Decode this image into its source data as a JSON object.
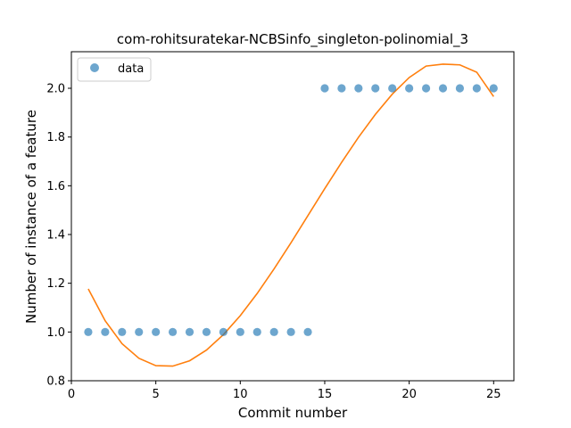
{
  "chart_data": {
    "type": "scatter",
    "title": "com-rohitsuratekar-NCBSinfo_singleton-polinomial_3",
    "xlabel": "Commit number",
    "ylabel": "Number of instance of a feature",
    "xlim": [
      0,
      26.2
    ],
    "ylim": [
      0.8,
      2.15
    ],
    "xticks": [
      0,
      5,
      10,
      15,
      20,
      25
    ],
    "yticks": [
      0.8,
      1.0,
      1.2,
      1.4,
      1.6,
      1.8,
      2.0
    ],
    "xtick_labels": [
      "0",
      "5",
      "10",
      "15",
      "20",
      "25"
    ],
    "ytick_labels": [
      "0.8",
      "1.0",
      "1.2",
      "1.4",
      "1.6",
      "1.8",
      "2.0"
    ],
    "grid": false,
    "legend_position": "upper-left",
    "series": [
      {
        "name": "data",
        "kind": "scatter",
        "color": "#1f77b4",
        "x": [
          1,
          2,
          3,
          4,
          5,
          6,
          7,
          8,
          9,
          10,
          11,
          12,
          13,
          14,
          15,
          16,
          17,
          18,
          19,
          20,
          21,
          22,
          23,
          24,
          25
        ],
        "y": [
          1,
          1,
          1,
          1,
          1,
          1,
          1,
          1,
          1,
          1,
          1,
          1,
          1,
          1,
          2,
          2,
          2,
          2,
          2,
          2,
          2,
          2,
          2,
          2,
          2
        ]
      },
      {
        "kind": "line",
        "color": "#ff7f0e",
        "x": [
          1,
          2,
          3,
          4,
          5,
          6,
          7,
          8,
          9,
          10,
          11,
          12,
          13,
          14,
          15,
          16,
          17,
          18,
          19,
          20,
          21,
          22,
          23,
          24,
          25
        ],
        "y": [
          1.177,
          1.046,
          0.952,
          0.892,
          0.862,
          0.86,
          0.882,
          0.926,
          0.989,
          1.067,
          1.158,
          1.259,
          1.366,
          1.477,
          1.588,
          1.696,
          1.799,
          1.893,
          1.976,
          2.044,
          2.091,
          2.099,
          2.096,
          2.066,
          1.966
        ]
      }
    ]
  }
}
